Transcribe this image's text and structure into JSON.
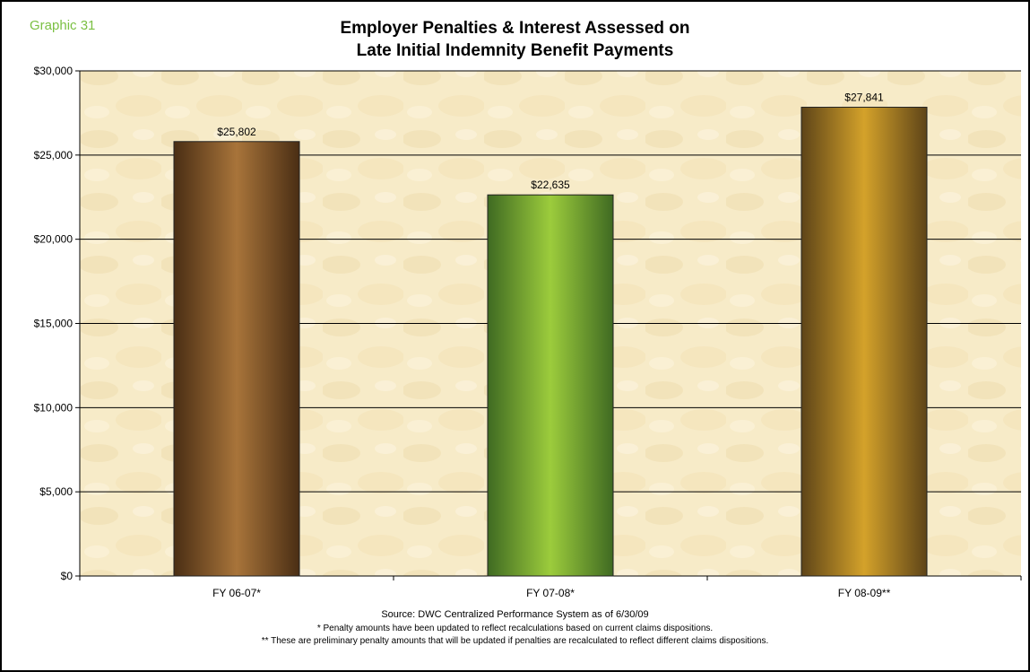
{
  "graphic_label": "Graphic 31",
  "chart_data": {
    "type": "bar",
    "title_line1": "Employer Penalties & Interest Assessed on",
    "title_line2": "Late Initial Indemnity Benefit Payments",
    "categories": [
      "FY 06-07*",
      "FY 07-08*",
      "FY 08-09**"
    ],
    "values": [
      25802,
      22635,
      27841
    ],
    "data_labels": [
      "$25,802",
      "$22,635",
      "$27,841"
    ],
    "ylim": [
      0,
      30000
    ],
    "yticks": [
      0,
      5000,
      10000,
      15000,
      20000,
      25000,
      30000
    ],
    "ytick_labels": [
      "$0",
      "$5,000",
      "$10,000",
      "$15,000",
      "$20,000",
      "$25,000",
      "$30,000"
    ],
    "grid": true,
    "bar_colors": [
      {
        "edge": "#4a2e14",
        "center": "#a8743a"
      },
      {
        "edge": "#3f6a22",
        "center": "#9ccc3c"
      },
      {
        "edge": "#5e4418",
        "center": "#d4a22a"
      }
    ],
    "plot_background": "#f7ebc8"
  },
  "notes": {
    "source": "Source: DWC Centralized Performance System as of 6/30/09",
    "note1": "* Penalty amounts have been updated to reflect recalculations based on current claims dispositions.",
    "note2": "** These are preliminary penalty amounts that will be updated if penalties are recalculated to reflect different claims dispositions."
  }
}
